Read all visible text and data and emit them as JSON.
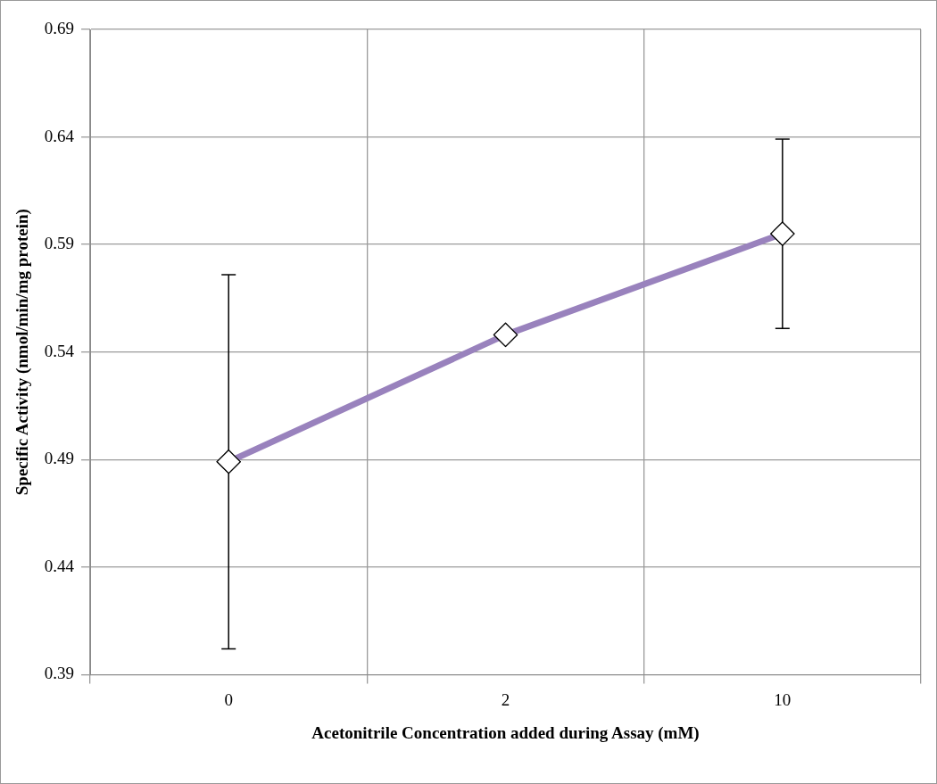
{
  "chart_data": {
    "type": "line",
    "xlabel": "Acetonitrile Concentration added during Assay (mM)",
    "ylabel": "Specific Activity (nmol/min/mg protein)",
    "categories": [
      "0",
      "2",
      "10"
    ],
    "series": [
      {
        "color": "#9982bd",
        "values": [
          0.489,
          0.548,
          0.595
        ],
        "errors": [
          0.087,
          null,
          0.044
        ]
      }
    ],
    "ylim": [
      0.39,
      0.69
    ],
    "yticks": [
      0.39,
      0.44,
      0.49,
      0.54,
      0.59,
      0.64,
      0.69
    ],
    "grid": true,
    "legend": false,
    "marker": "diamond",
    "line_style": "solid"
  }
}
